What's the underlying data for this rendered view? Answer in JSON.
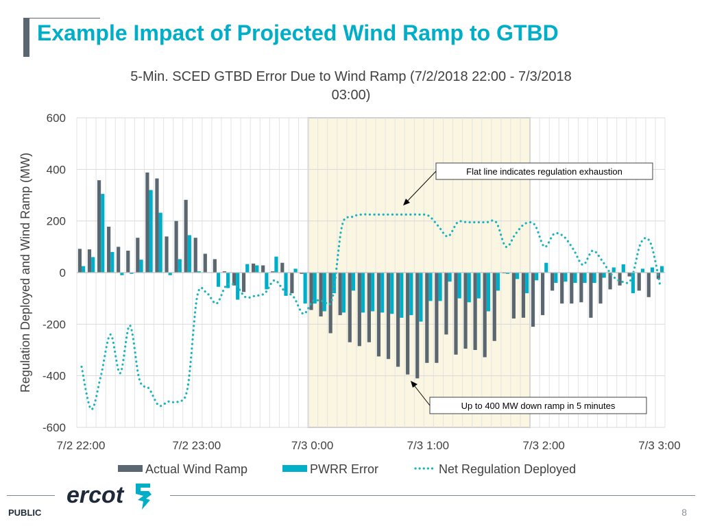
{
  "slide": {
    "title": "Example Impact of Projected Wind Ramp to GTBD",
    "footer_label": "PUBLIC",
    "page_number": "8",
    "logo_text": "ercot"
  },
  "colors": {
    "title": "#00aec7",
    "actual": "#5b6770",
    "pwrr": "#00aec7",
    "net": "#1bb3bf",
    "highlight_fill": "#fbf6e1",
    "highlight_border": "#c8c8c8"
  },
  "chart_data": {
    "type": "bar",
    "title_line1": "5-Min. SCED GTBD Error Due to Wind Ramp (7/2/2018 22:00 - 7/3/2018",
    "title_line2": "03:00)",
    "ylabel": "Regulation Deployed and Wind Ramp (MW)",
    "xlabel": "",
    "ylim": [
      -600,
      600
    ],
    "yticks": [
      600,
      400,
      200,
      0,
      -200,
      -400,
      -600
    ],
    "xtick_labels": [
      "7/2 22:00",
      "7/2 23:00",
      "7/3 0:00",
      "7/3 1:00",
      "7/3 2:00",
      "7/3 3:00"
    ],
    "intervals": 61,
    "highlight_interval_range": [
      24,
      47
    ],
    "legend_position": "bottom",
    "series": [
      {
        "name": "Actual Wind Ramp",
        "kind": "bar",
        "values": [
          92,
          90,
          358,
          178,
          100,
          85,
          135,
          388,
          365,
          140,
          200,
          282,
          135,
          73,
          52,
          5,
          -50,
          -75,
          35,
          28,
          5,
          38,
          -80,
          -5,
          -145,
          -170,
          -235,
          -165,
          -270,
          -285,
          -270,
          -325,
          -335,
          -365,
          -395,
          -410,
          -350,
          -350,
          -240,
          -318,
          -295,
          -300,
          -328,
          -265,
          -3,
          -178,
          -175,
          -210,
          -165,
          -70,
          -120,
          -120,
          -115,
          -175,
          -120,
          -65,
          -50,
          -15,
          -70,
          -95,
          -25
        ]
      },
      {
        "name": "PWRR Error",
        "kind": "bar",
        "values": [
          25,
          60,
          305,
          80,
          -10,
          -5,
          50,
          320,
          232,
          -10,
          52,
          145,
          5,
          0,
          -55,
          -60,
          -105,
          33,
          28,
          -65,
          62,
          -90,
          15,
          -120,
          -120,
          -150,
          -80,
          -155,
          -70,
          -155,
          -150,
          -155,
          -160,
          -175,
          -165,
          -190,
          -110,
          -110,
          -35,
          -100,
          -115,
          -100,
          -150,
          -70,
          -5,
          -25,
          -80,
          -30,
          38,
          -40,
          -35,
          -40,
          -40,
          -40,
          -20,
          20,
          32,
          -80,
          15,
          20,
          25
        ]
      },
      {
        "name": "Net Regulation Deployed",
        "kind": "line",
        "values": [
          -365,
          -530,
          -400,
          -240,
          -390,
          -205,
          -415,
          -450,
          -515,
          -500,
          -500,
          -445,
          -90,
          -80,
          -120,
          -50,
          -50,
          -95,
          -90,
          -80,
          -30,
          -70,
          -95,
          -160,
          -110,
          -110,
          -100,
          180,
          215,
          225,
          225,
          225,
          225,
          225,
          225,
          225,
          220,
          180,
          140,
          195,
          195,
          195,
          195,
          195,
          100,
          150,
          190,
          185,
          100,
          150,
          140,
          90,
          30,
          85,
          45,
          -10,
          -35,
          -25,
          115,
          115,
          -50
        ]
      }
    ],
    "annotations": [
      "Flat line indicates regulation exhaustion",
      "Up to 400 MW down ramp in 5 minutes"
    ]
  }
}
